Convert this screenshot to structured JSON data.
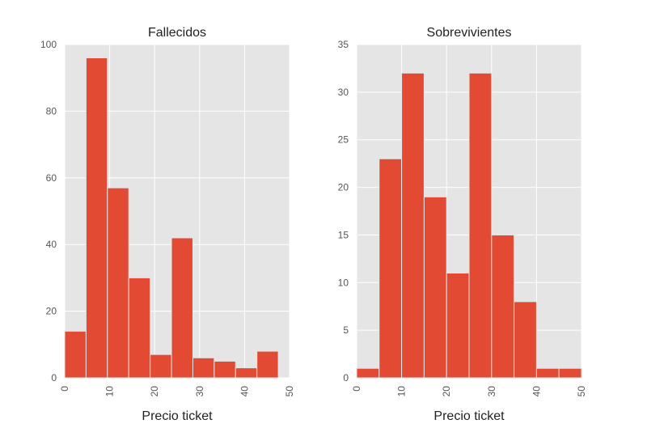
{
  "chart_data": [
    {
      "type": "bar",
      "title": "Fallecidos",
      "xlabel": "Precio ticket",
      "ylabel": "",
      "xlim": [
        0,
        50
      ],
      "ylim": [
        0,
        100
      ],
      "bin_edges": [
        0,
        4.75,
        9.5,
        14.25,
        19,
        23.75,
        28.5,
        33.25,
        38,
        42.75,
        47.5
      ],
      "values": [
        14,
        96,
        57,
        30,
        7,
        42,
        6,
        5,
        3,
        8
      ],
      "xticks": [
        0,
        10,
        20,
        30,
        40,
        50
      ],
      "yticks": [
        0,
        20,
        40,
        60,
        80,
        100
      ],
      "grid": true,
      "bar_color": "#e24a33"
    },
    {
      "type": "bar",
      "title": "Sobrevivientes",
      "xlabel": "Precio ticket",
      "ylabel": "",
      "xlim": [
        0,
        50
      ],
      "ylim": [
        0,
        35
      ],
      "bin_edges": [
        0,
        5,
        10,
        15,
        20,
        25,
        30,
        35,
        40,
        45,
        50
      ],
      "values": [
        1,
        23,
        32,
        19,
        11,
        32,
        15,
        8,
        1,
        1
      ],
      "xticks": [
        0,
        10,
        20,
        30,
        40,
        50
      ],
      "yticks": [
        0,
        5,
        10,
        15,
        20,
        25,
        30,
        35
      ],
      "grid": true,
      "bar_color": "#e24a33"
    }
  ],
  "colors": {
    "plot_background": "#e5e5e5",
    "grid": "#ffffff",
    "bar": "#e24a33",
    "bar_edge": "#e5e5e5",
    "text": "#222222",
    "tick_text": "#555555"
  }
}
